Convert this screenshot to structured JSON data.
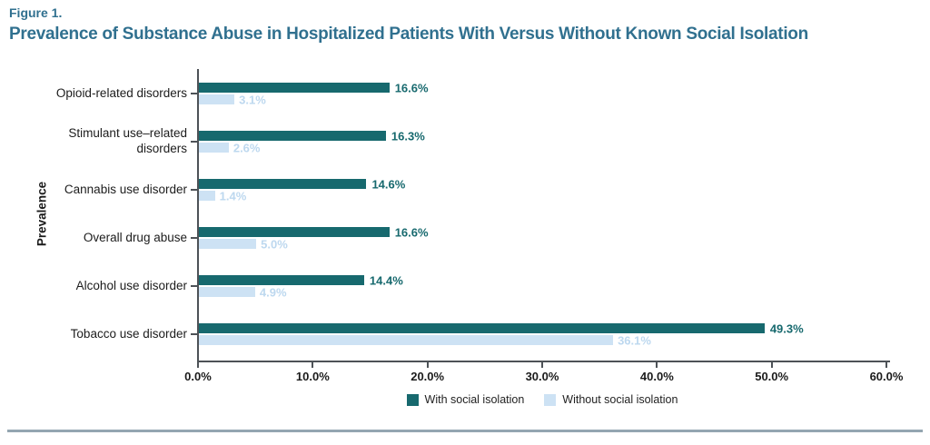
{
  "figure": {
    "label": "Figure 1.",
    "title": "Prevalence of Substance Abuse in Hospitalized Patients With Versus Without Known Social Isolation"
  },
  "colors": {
    "accent": "#30708f",
    "with_isolation": "#17696e",
    "without_isolation": "#cde2f4",
    "light_label": "#bdd8ef",
    "axis": "#4d5257",
    "rule": "#94a6b1"
  },
  "chart_data": {
    "type": "bar",
    "orientation": "horizontal",
    "title": "Prevalence of Substance Abuse in Hospitalized Patients With Versus Without Known Social Isolation",
    "xlabel": "",
    "ylabel": "Prevalence",
    "xlim": [
      0,
      60
    ],
    "x_ticks": [
      "0.0%",
      "10.0%",
      "20.0%",
      "30.0%",
      "40.0%",
      "50.0%",
      "60.0%"
    ],
    "grid": false,
    "legend_position": "bottom",
    "legend": [
      "With social isolation",
      "Without social isolation"
    ],
    "categories": [
      "Opioid-related disorders",
      "Stimulant use–related disorders",
      "Cannabis use disorder",
      "Overall drug abuse",
      "Alcohol use disorder",
      "Tobacco use disorder"
    ],
    "series": [
      {
        "name": "With social isolation",
        "values": [
          16.6,
          16.3,
          14.6,
          16.6,
          14.4,
          49.3
        ],
        "labels": [
          "16.6%",
          "16.3%",
          "14.6%",
          "16.6%",
          "14.4%",
          "49.3%"
        ]
      },
      {
        "name": "Without social isolation",
        "values": [
          3.1,
          2.6,
          1.4,
          5.0,
          4.9,
          36.1
        ],
        "labels": [
          "3.1%",
          "2.6%",
          "1.4%",
          "5.0%",
          "4.9%",
          "36.1%"
        ]
      }
    ]
  }
}
